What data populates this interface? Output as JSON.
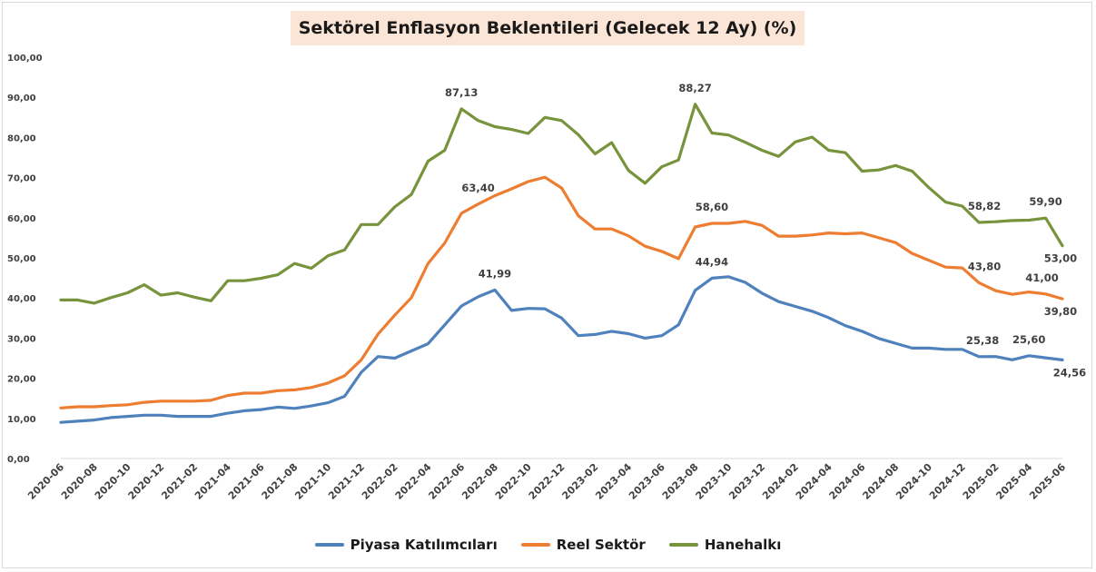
{
  "chart_data": {
    "type": "line",
    "title": "Sektörel Enflasyon Beklentileri (Gelecek 12 Ay) (%)",
    "ylim": [
      0,
      100
    ],
    "y_ticks": [
      "0,00",
      "10,00",
      "20,00",
      "30,00",
      "40,00",
      "50,00",
      "60,00",
      "70,00",
      "80,00",
      "90,00",
      "100,00"
    ],
    "x_tick_labels": [
      "2020-06",
      "2020-08",
      "2020-10",
      "2020-12",
      "2021-02",
      "2021-04",
      "2021-06",
      "2021-08",
      "2021-10",
      "2021-12",
      "2022-02",
      "2022-04",
      "2022-06",
      "2022-08",
      "2022-10",
      "2022-12",
      "2023-02",
      "2023-04",
      "2023-06",
      "2023-08",
      "2023-10",
      "2023-12",
      "2024-02",
      "2024-04",
      "2024-06",
      "2024-08",
      "2024-10",
      "2024-12",
      "2025-02",
      "2025-04",
      "2025-06"
    ],
    "x_range": [
      "2020-06",
      "2025-06"
    ],
    "grid": false,
    "legend_position": "bottom",
    "series": [
      {
        "name": "Piyasa Katılımcıları",
        "color": "#4f81bd",
        "values": [
          9.0,
          9.3,
          9.6,
          10.2,
          10.5,
          10.8,
          10.8,
          10.5,
          10.5,
          10.5,
          11.3,
          11.9,
          12.2,
          12.8,
          12.5,
          13.1,
          13.9,
          15.5,
          21.5,
          25.4,
          25.0,
          26.8,
          28.6,
          33.3,
          38.0,
          40.3,
          41.99,
          36.9,
          37.4,
          37.3,
          35.0,
          30.6,
          30.9,
          31.7,
          31.1,
          30.0,
          30.6,
          33.3,
          41.9,
          44.94,
          45.3,
          43.9,
          41.2,
          39.1,
          37.9,
          36.7,
          35.1,
          33.1,
          31.7,
          29.9,
          28.7,
          27.5,
          27.5,
          27.2,
          27.2,
          25.38,
          25.4,
          24.6,
          25.6,
          25.1,
          24.56
        ]
      },
      {
        "name": "Reel Sektör",
        "color": "#ed7d31",
        "values": [
          12.6,
          12.9,
          12.9,
          13.2,
          13.4,
          14.0,
          14.3,
          14.3,
          14.3,
          14.5,
          15.7,
          16.3,
          16.3,
          16.9,
          17.1,
          17.7,
          18.8,
          20.6,
          24.6,
          31.0,
          35.7,
          40.1,
          48.6,
          53.7,
          61.1,
          63.4,
          65.5,
          67.2,
          69.0,
          70.1,
          67.4,
          60.5,
          57.2,
          57.2,
          55.5,
          52.9,
          51.6,
          49.8,
          57.7,
          58.6,
          58.6,
          59.1,
          58.1,
          55.4,
          55.4,
          55.7,
          56.2,
          56.0,
          56.2,
          55.0,
          53.8,
          51.1,
          49.4,
          47.7,
          47.5,
          43.8,
          41.8,
          40.9,
          41.5,
          41.0,
          39.8
        ]
      },
      {
        "name": "Hanehalkı",
        "color": "#77933c",
        "values": [
          39.5,
          39.5,
          38.7,
          40.1,
          41.3,
          43.3,
          40.7,
          41.3,
          40.2,
          39.3,
          44.3,
          44.3,
          44.9,
          45.8,
          48.6,
          47.4,
          50.5,
          52.0,
          58.3,
          58.3,
          62.7,
          65.8,
          74.1,
          76.8,
          87.13,
          84.2,
          82.7,
          82.0,
          81.0,
          85.0,
          84.2,
          80.7,
          75.9,
          78.7,
          71.8,
          68.6,
          72.7,
          74.4,
          88.27,
          81.1,
          80.6,
          78.8,
          76.8,
          75.3,
          78.9,
          80.1,
          76.8,
          76.2,
          71.6,
          71.9,
          73.0,
          71.6,
          67.5,
          63.9,
          62.9,
          58.82,
          59.0,
          59.3,
          59.4,
          59.9,
          53.0
        ]
      }
    ],
    "annotations": [
      {
        "series": 0,
        "index": 26,
        "text": "41,99"
      },
      {
        "series": 0,
        "index": 39,
        "text": "44,94"
      },
      {
        "series": 0,
        "index": 55,
        "text": "25,38"
      },
      {
        "series": 0,
        "index": 58,
        "text": "25,60"
      },
      {
        "series": 0,
        "index": 60,
        "text": "24,56"
      },
      {
        "series": 1,
        "index": 25,
        "text": "63,40"
      },
      {
        "series": 1,
        "index": 39,
        "text": "58,60"
      },
      {
        "series": 1,
        "index": 55,
        "text": "43,80"
      },
      {
        "series": 1,
        "index": 59,
        "text": "41,00"
      },
      {
        "series": 1,
        "index": 60,
        "text": "39,80"
      },
      {
        "series": 2,
        "index": 24,
        "text": "87,13"
      },
      {
        "series": 2,
        "index": 38,
        "text": "88,27"
      },
      {
        "series": 2,
        "index": 55,
        "text": "58,82"
      },
      {
        "series": 2,
        "index": 59,
        "text": "59,90"
      },
      {
        "series": 2,
        "index": 60,
        "text": "53,00"
      }
    ]
  }
}
